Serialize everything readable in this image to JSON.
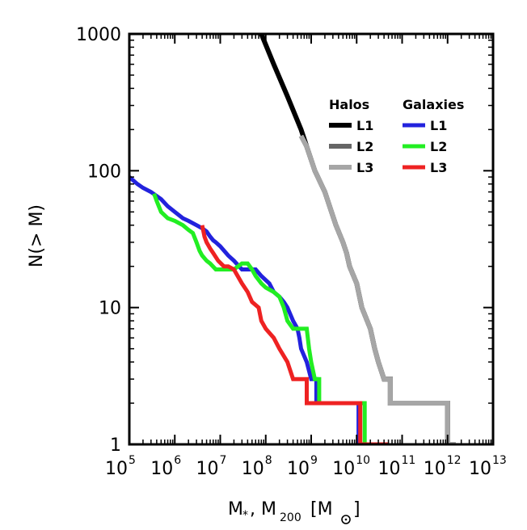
{
  "chart_data": {
    "type": "line",
    "xlabel_parts": {
      "m": "M",
      "star": "*",
      "sep": ", M",
      "sub200": "200",
      "bracket_open": "[M",
      "bracket_close": "]"
    },
    "ylabel": "N(> M)",
    "xscale": "log",
    "yscale": "log",
    "xlim": [
      100000,
      10000000000000
    ],
    "ylim": [
      1,
      1000
    ],
    "x_ticks": [
      {
        "value": 100000,
        "base": "10",
        "exp": "5"
      },
      {
        "value": 1000000,
        "base": "10",
        "exp": "6"
      },
      {
        "value": 10000000,
        "base": "10",
        "exp": "7"
      },
      {
        "value": 100000000,
        "base": "10",
        "exp": "8"
      },
      {
        "value": 1000000000,
        "base": "10",
        "exp": "9"
      },
      {
        "value": 10000000000,
        "base": "10",
        "exp": "10"
      },
      {
        "value": 100000000000,
        "base": "10",
        "exp": "11"
      },
      {
        "value": 1000000000000,
        "base": "10",
        "exp": "12"
      },
      {
        "value": 10000000000000,
        "base": "10",
        "exp": "13"
      }
    ],
    "y_ticks": [
      {
        "value": 1000,
        "label": "1000"
      },
      {
        "value": 100,
        "label": "100"
      },
      {
        "value": 10,
        "label": "10"
      },
      {
        "value": 1,
        "label": "1"
      }
    ],
    "legend": {
      "position": "top-right",
      "halos_title": "Halos",
      "galaxies_title": "Galaxies",
      "level_labels": [
        "L1",
        "L2",
        "L3"
      ]
    },
    "series": [
      {
        "name": "L1",
        "group": "Halos",
        "color": "#000000",
        "width": 6,
        "points": [
          [
            80000000,
            1000
          ],
          [
            150000000,
            600
          ],
          [
            300000000,
            350
          ],
          [
            600000000,
            200
          ],
          [
            800000000,
            150
          ],
          [
            1200000000,
            100
          ],
          [
            2000000000,
            70
          ],
          [
            3500000000,
            40
          ],
          [
            5000000000,
            30
          ],
          [
            6000000000,
            25
          ],
          [
            7000000000,
            20
          ],
          [
            10000000000,
            15
          ],
          [
            13000000000,
            10
          ],
          [
            20000000000,
            7
          ],
          [
            25000000000,
            5
          ],
          [
            30000000000,
            4
          ],
          [
            40000000000,
            3
          ],
          [
            55000000000,
            3
          ],
          [
            55000000000,
            2
          ],
          [
            1000000000000,
            2
          ],
          [
            1000000000000,
            1
          ],
          [
            1400000000000,
            1
          ]
        ]
      },
      {
        "name": "L2",
        "group": "Halos",
        "color": "#666666",
        "width": 6,
        "points": [
          [
            600000000,
            180
          ],
          [
            800000000,
            150
          ],
          [
            1200000000,
            100
          ],
          [
            2000000000,
            70
          ],
          [
            3500000000,
            40
          ],
          [
            5000000000,
            30
          ],
          [
            6000000000,
            25
          ],
          [
            7000000000,
            20
          ],
          [
            10000000000,
            15
          ],
          [
            13000000000,
            10
          ],
          [
            20000000000,
            7
          ],
          [
            25000000000,
            5
          ],
          [
            30000000000,
            4
          ],
          [
            40000000000,
            3
          ],
          [
            55000000000,
            3
          ],
          [
            55000000000,
            2
          ],
          [
            1000000000000,
            2
          ],
          [
            1000000000000,
            1
          ],
          [
            1500000000000,
            1
          ]
        ]
      },
      {
        "name": "L3",
        "group": "Halos",
        "color": "#a6a6a6",
        "width": 6,
        "points": [
          [
            600000000,
            180
          ],
          [
            800000000,
            150
          ],
          [
            1200000000,
            100
          ],
          [
            2000000000,
            70
          ],
          [
            3500000000,
            40
          ],
          [
            5000000000,
            30
          ],
          [
            6000000000,
            25
          ],
          [
            7000000000,
            20
          ],
          [
            10000000000,
            15
          ],
          [
            13000000000,
            10
          ],
          [
            20000000000,
            7
          ],
          [
            25000000000,
            5
          ],
          [
            30000000000,
            4
          ],
          [
            40000000000,
            3
          ],
          [
            55000000000,
            3
          ],
          [
            55000000000,
            2
          ],
          [
            1000000000000,
            2
          ],
          [
            1000000000000,
            1
          ],
          [
            1500000000000,
            1
          ]
        ]
      },
      {
        "name": "L1",
        "group": "Galaxies",
        "color": "#2222dd",
        "width": 5,
        "points": [
          [
            100000,
            90
          ],
          [
            150000,
            80
          ],
          [
            200000,
            75
          ],
          [
            300000,
            70
          ],
          [
            500000,
            62
          ],
          [
            700000,
            55
          ],
          [
            1000000,
            50
          ],
          [
            1500000,
            45
          ],
          [
            2000000,
            43
          ],
          [
            3000000,
            40
          ],
          [
            4000000,
            38
          ],
          [
            5000000,
            36
          ],
          [
            6000000,
            33
          ],
          [
            7000000,
            31
          ],
          [
            8000000,
            30
          ],
          [
            10000000,
            28
          ],
          [
            15000000,
            24
          ],
          [
            20000000,
            22
          ],
          [
            30000000,
            19
          ],
          [
            60000000,
            19
          ],
          [
            80000000,
            17
          ],
          [
            120000000,
            15
          ],
          [
            150000000,
            13
          ],
          [
            200000000,
            12
          ],
          [
            250000000,
            11
          ],
          [
            300000000,
            10
          ],
          [
            400000000,
            8
          ],
          [
            500000000,
            7
          ],
          [
            550000000,
            6
          ],
          [
            600000000,
            5
          ],
          [
            800000000,
            4
          ],
          [
            1000000000,
            3
          ],
          [
            1300000000,
            3
          ],
          [
            1300000000,
            2
          ],
          [
            11000000000,
            2
          ],
          [
            11000000000,
            1
          ],
          [
            13000000000,
            1
          ]
        ]
      },
      {
        "name": "L2",
        "group": "Galaxies",
        "color": "#22ee22",
        "width": 5,
        "points": [
          [
            350000,
            68
          ],
          [
            400000,
            60
          ],
          [
            500000,
            50
          ],
          [
            700000,
            45
          ],
          [
            1000000,
            43
          ],
          [
            1500000,
            40
          ],
          [
            2000000,
            37
          ],
          [
            2500000,
            35
          ],
          [
            3000000,
            30
          ],
          [
            3500000,
            26
          ],
          [
            4000000,
            24
          ],
          [
            5000000,
            22
          ],
          [
            6000000,
            21
          ],
          [
            8000000,
            19
          ],
          [
            20000000,
            19
          ],
          [
            30000000,
            21
          ],
          [
            40000000,
            21
          ],
          [
            50000000,
            19
          ],
          [
            60000000,
            17
          ],
          [
            80000000,
            15
          ],
          [
            100000000,
            14
          ],
          [
            150000000,
            13
          ],
          [
            200000000,
            12
          ],
          [
            250000000,
            10
          ],
          [
            300000000,
            8
          ],
          [
            400000000,
            7
          ],
          [
            800000000,
            7
          ],
          [
            900000000,
            5
          ],
          [
            1000000000,
            4
          ],
          [
            1200000000,
            3
          ],
          [
            1500000000,
            3
          ],
          [
            1500000000,
            2
          ],
          [
            15000000000,
            2
          ],
          [
            15000000000,
            1
          ],
          [
            20000000000,
            1
          ]
        ]
      },
      {
        "name": "L3",
        "group": "Galaxies",
        "color": "#ee2222",
        "width": 5,
        "points": [
          [
            4000000,
            40
          ],
          [
            4500000,
            33
          ],
          [
            5000000,
            30
          ],
          [
            6000000,
            27
          ],
          [
            7000000,
            25
          ],
          [
            9000000,
            22
          ],
          [
            12000000,
            20
          ],
          [
            15000000,
            20
          ],
          [
            20000000,
            19
          ],
          [
            30000000,
            15
          ],
          [
            40000000,
            13
          ],
          [
            50000000,
            11
          ],
          [
            70000000,
            10
          ],
          [
            80000000,
            8
          ],
          [
            100000000,
            7
          ],
          [
            150000000,
            6
          ],
          [
            200000000,
            5
          ],
          [
            300000000,
            4
          ],
          [
            400000000,
            3
          ],
          [
            500000000,
            3
          ],
          [
            800000000,
            3
          ],
          [
            800000000,
            2
          ],
          [
            12000000000,
            2
          ],
          [
            12000000000,
            1
          ],
          [
            50000000000,
            1
          ]
        ]
      }
    ]
  }
}
